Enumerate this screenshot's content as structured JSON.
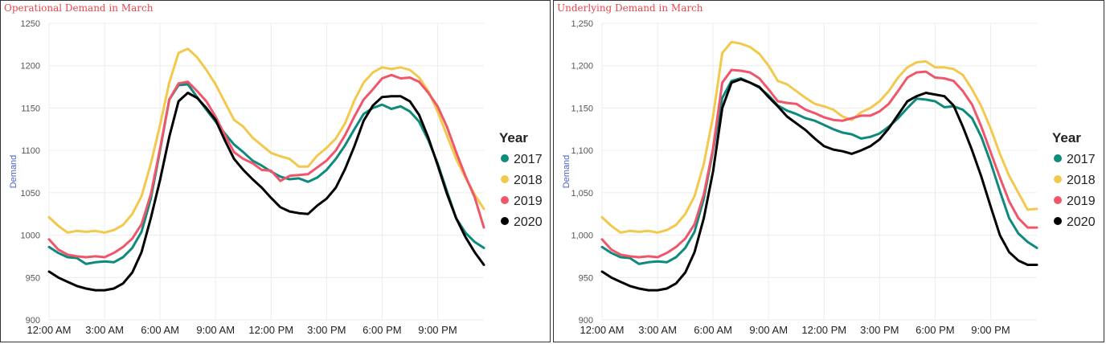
{
  "colors": {
    "2017": "#0e8a7d",
    "2018": "#f2c94c",
    "2019": "#f0566a",
    "2020": "#000000",
    "title": "#e8474f",
    "ylabel": "#4b63c9"
  },
  "chart_data": [
    {
      "type": "line",
      "title": "Operational Demand in March",
      "xlabel": "",
      "ylabel": "Demand",
      "ylim": [
        900,
        1250
      ],
      "yticks": [
        "900",
        "950",
        "1000",
        "1050",
        "1100",
        "1150",
        "1200",
        "1250"
      ],
      "xticks": [
        "12:00 AM",
        "3:00 AM",
        "6:00 AM",
        "9:00 AM",
        "12:00 PM",
        "3:00 PM",
        "6:00 PM",
        "9:00 PM"
      ],
      "x_unit": "hour of day",
      "x": [
        0,
        0.5,
        1,
        1.5,
        2,
        2.5,
        3,
        3.5,
        4,
        4.5,
        5,
        5.5,
        6,
        6.5,
        7,
        7.5,
        8,
        8.5,
        9,
        9.5,
        10,
        10.5,
        11,
        11.5,
        12,
        12.5,
        13,
        13.5,
        14,
        14.5,
        15,
        15.5,
        16,
        16.5,
        17,
        17.5,
        18,
        18.5,
        19,
        19.5,
        20,
        20.5,
        21,
        21.5,
        22,
        22.5,
        23,
        23.5
      ],
      "legend_title": "Year",
      "legend_position": "right",
      "grid": true,
      "series": [
        {
          "name": "2017",
          "values": [
            986,
            979,
            974,
            973,
            966,
            968,
            969,
            968,
            974,
            985,
            1004,
            1043,
            1100,
            1160,
            1177,
            1178,
            1163,
            1148,
            1134,
            1120,
            1107,
            1098,
            1088,
            1082,
            1075,
            1069,
            1066,
            1067,
            1063,
            1068,
            1077,
            1090,
            1106,
            1125,
            1143,
            1150,
            1154,
            1149,
            1152,
            1146,
            1134,
            1112,
            1085,
            1052,
            1020,
            1003,
            992,
            985
          ]
        },
        {
          "name": "2018",
          "values": [
            1021,
            1011,
            1003,
            1005,
            1004,
            1005,
            1003,
            1006,
            1012,
            1025,
            1046,
            1084,
            1130,
            1180,
            1215,
            1220,
            1210,
            1195,
            1178,
            1157,
            1136,
            1128,
            1115,
            1106,
            1097,
            1093,
            1090,
            1081,
            1081,
            1094,
            1103,
            1114,
            1132,
            1159,
            1180,
            1192,
            1198,
            1196,
            1198,
            1195,
            1186,
            1170,
            1146,
            1118,
            1090,
            1068,
            1048,
            1031
          ]
        },
        {
          "name": "2019",
          "values": [
            995,
            983,
            977,
            975,
            974,
            975,
            974,
            979,
            986,
            996,
            1013,
            1048,
            1102,
            1160,
            1179,
            1181,
            1170,
            1158,
            1140,
            1118,
            1098,
            1090,
            1085,
            1077,
            1076,
            1064,
            1070,
            1071,
            1072,
            1080,
            1088,
            1100,
            1118,
            1140,
            1160,
            1172,
            1185,
            1189,
            1185,
            1186,
            1181,
            1168,
            1152,
            1128,
            1098,
            1070,
            1045,
            1009
          ]
        },
        {
          "name": "2020",
          "values": [
            957,
            950,
            945,
            940,
            937,
            935,
            935,
            937,
            943,
            956,
            980,
            1020,
            1065,
            1116,
            1158,
            1168,
            1162,
            1150,
            1136,
            1112,
            1090,
            1077,
            1066,
            1056,
            1044,
            1033,
            1028,
            1026,
            1025,
            1035,
            1043,
            1056,
            1078,
            1105,
            1135,
            1153,
            1163,
            1164,
            1164,
            1158,
            1142,
            1115,
            1083,
            1049,
            1020,
            998,
            980,
            965
          ]
        }
      ]
    },
    {
      "type": "line",
      "title": "Underlying Demand in March",
      "xlabel": "",
      "ylabel": "Demand",
      "ylim": [
        900,
        1250
      ],
      "yticks": [
        "900",
        "950",
        "1,000",
        "1,050",
        "1,100",
        "1,150",
        "1,200",
        "1,250"
      ],
      "xticks": [
        "12:00 AM",
        "3:00 AM",
        "6:00 AM",
        "9:00 AM",
        "12:00 PM",
        "3:00 PM",
        "6:00 PM",
        "9:00 PM"
      ],
      "x_unit": "hour of day",
      "x": [
        0,
        0.5,
        1,
        1.5,
        2,
        2.5,
        3,
        3.5,
        4,
        4.5,
        5,
        5.5,
        6,
        6.5,
        7,
        7.5,
        8,
        8.5,
        9,
        9.5,
        10,
        10.5,
        11,
        11.5,
        12,
        12.5,
        13,
        13.5,
        14,
        14.5,
        15,
        15.5,
        16,
        16.5,
        17,
        17.5,
        18,
        18.5,
        19,
        19.5,
        20,
        20.5,
        21,
        21.5,
        22,
        22.5,
        23,
        23.5
      ],
      "legend_title": "Year",
      "legend_position": "right",
      "grid": true,
      "series": [
        {
          "name": "2017",
          "values": [
            986,
            979,
            974,
            973,
            966,
            968,
            969,
            968,
            974,
            985,
            1004,
            1043,
            1100,
            1162,
            1182,
            1185,
            1180,
            1174,
            1165,
            1153,
            1147,
            1143,
            1138,
            1135,
            1130,
            1125,
            1121,
            1119,
            1114,
            1116,
            1120,
            1128,
            1138,
            1150,
            1161,
            1160,
            1158,
            1151,
            1152,
            1148,
            1138,
            1116,
            1086,
            1052,
            1020,
            1002,
            992,
            985
          ]
        },
        {
          "name": "2018",
          "values": [
            1021,
            1011,
            1003,
            1005,
            1004,
            1005,
            1003,
            1006,
            1012,
            1025,
            1046,
            1084,
            1140,
            1215,
            1228,
            1226,
            1222,
            1214,
            1200,
            1182,
            1178,
            1170,
            1162,
            1155,
            1152,
            1148,
            1140,
            1136,
            1145,
            1150,
            1158,
            1170,
            1186,
            1198,
            1204,
            1205,
            1198,
            1198,
            1196,
            1189,
            1172,
            1152,
            1126,
            1096,
            1070,
            1050,
            1030,
            1031
          ]
        },
        {
          "name": "2019",
          "values": [
            995,
            983,
            977,
            975,
            974,
            975,
            974,
            979,
            986,
            996,
            1013,
            1048,
            1102,
            1180,
            1195,
            1194,
            1192,
            1185,
            1172,
            1158,
            1156,
            1155,
            1148,
            1144,
            1139,
            1136,
            1135,
            1138,
            1141,
            1141,
            1146,
            1155,
            1170,
            1186,
            1192,
            1193,
            1186,
            1185,
            1182,
            1170,
            1154,
            1128,
            1098,
            1068,
            1040,
            1020,
            1009,
            1009
          ]
        },
        {
          "name": "2020",
          "values": [
            957,
            950,
            945,
            940,
            937,
            935,
            935,
            937,
            943,
            956,
            980,
            1020,
            1075,
            1150,
            1180,
            1184,
            1180,
            1175,
            1163,
            1152,
            1140,
            1132,
            1124,
            1114,
            1105,
            1101,
            1099,
            1096,
            1100,
            1105,
            1113,
            1126,
            1142,
            1158,
            1164,
            1168,
            1166,
            1164,
            1153,
            1128,
            1100,
            1069,
            1034,
            1000,
            980,
            970,
            965,
            965
          ]
        }
      ]
    }
  ]
}
